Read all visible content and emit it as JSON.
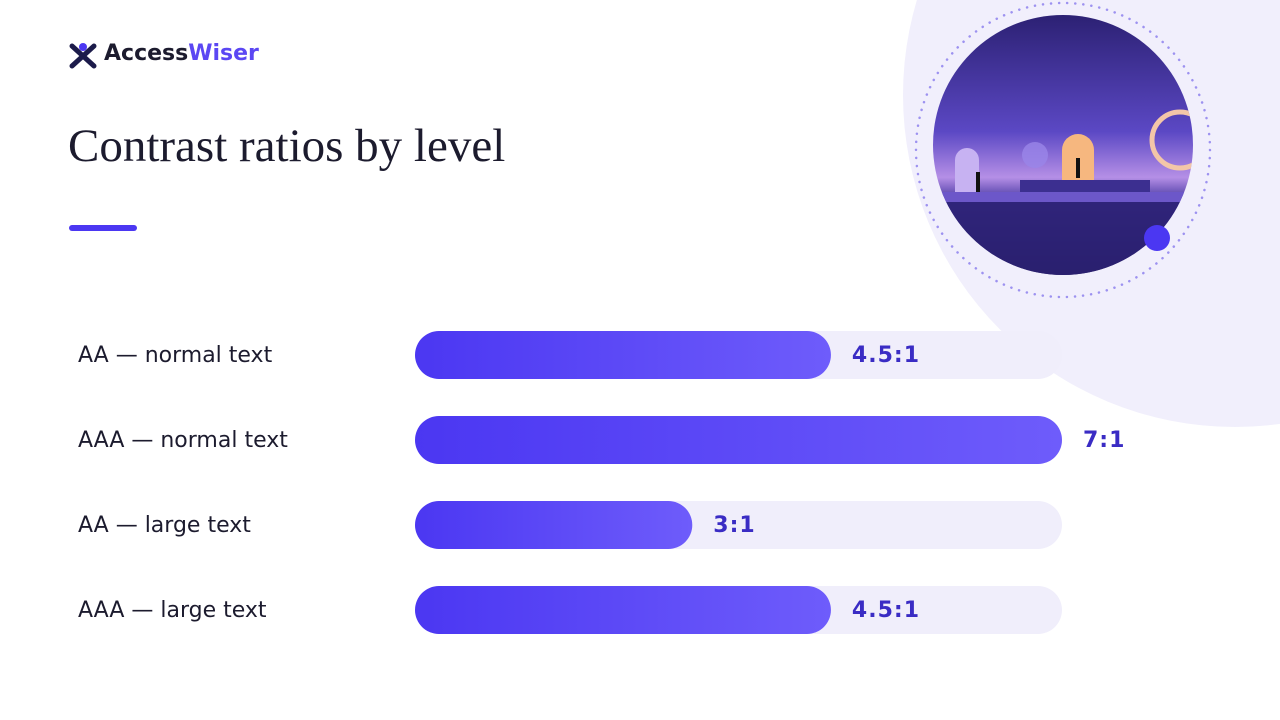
{
  "brand": {
    "name_1": "Access",
    "name_2": "Wiser"
  },
  "chart_data": {
    "type": "bar",
    "orientation": "horizontal",
    "title": "Contrast ratios by level",
    "categories": [
      "AA — normal text",
      "AAA — normal text",
      "AA — large text",
      "AAA — large text"
    ],
    "values": [
      4.5,
      7,
      3,
      4.5
    ],
    "value_labels": [
      "4.5:1",
      "7:1",
      "3:1",
      "4.5:1"
    ],
    "color": "#4b37f2",
    "xlim": [
      0,
      7
    ]
  }
}
